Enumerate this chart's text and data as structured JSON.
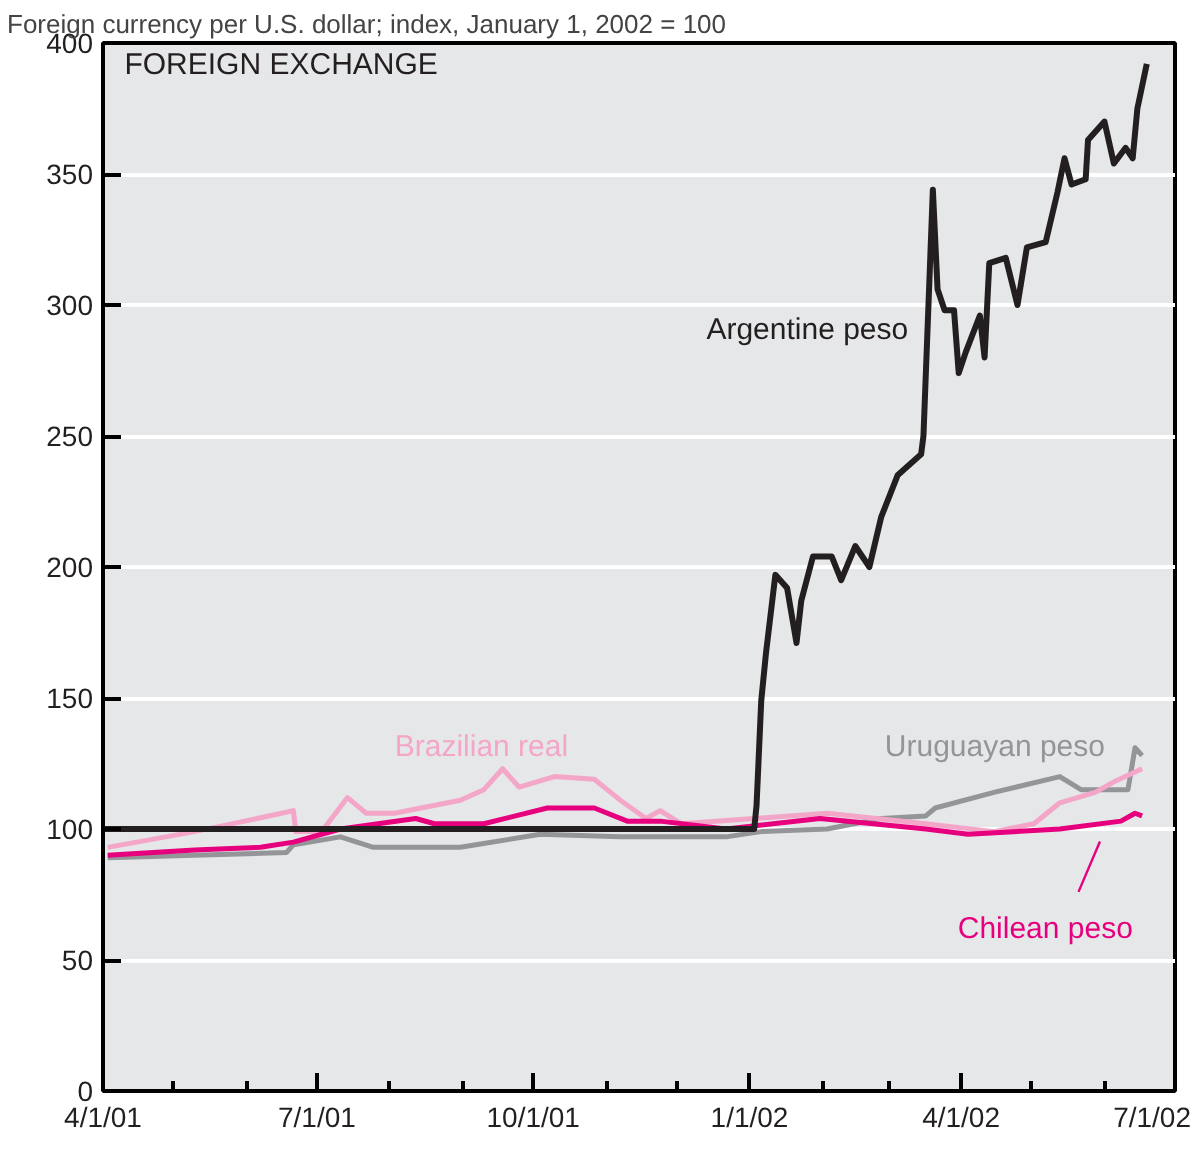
{
  "chart_data": {
    "type": "line",
    "title": "FOREIGN EXCHANGE",
    "ylabel": "Foreign currency per U.S. dollar; index, January 1, 2002 = 100",
    "xlim": [
      "2001-04-01",
      "2002-07-01"
    ],
    "ylim": [
      0,
      400
    ],
    "xticks": [
      {
        "value": "2001-04-01",
        "label": "4/1/01"
      },
      {
        "value": "2001-05-01",
        "label": null
      },
      {
        "value": "2001-06-01",
        "label": null
      },
      {
        "value": "2001-07-01",
        "label": "7/1/01"
      },
      {
        "value": "2001-08-01",
        "label": null
      },
      {
        "value": "2001-09-01",
        "label": null
      },
      {
        "value": "2001-10-01",
        "label": "10/1/01"
      },
      {
        "value": "2001-11-01",
        "label": null
      },
      {
        "value": "2001-12-01",
        "label": null
      },
      {
        "value": "2002-01-01",
        "label": "1/1/02"
      },
      {
        "value": "2002-02-01",
        "label": null
      },
      {
        "value": "2002-03-01",
        "label": null
      },
      {
        "value": "2002-04-01",
        "label": "4/1/02"
      },
      {
        "value": "2002-05-01",
        "label": null
      },
      {
        "value": "2002-06-01",
        "label": null
      },
      {
        "value": "2002-07-01",
        "label": "7/1/02"
      }
    ],
    "yticks": [
      0,
      50,
      100,
      150,
      200,
      250,
      300,
      350,
      400
    ],
    "grid": "y",
    "line_style": "solid",
    "series": [
      {
        "name": "Uruguayan peso",
        "color": "#939598",
        "x": [
          "2001-04-03",
          "2001-06-18",
          "2001-06-21",
          "2001-07-11",
          "2001-07-25",
          "2001-08-31",
          "2001-10-04",
          "2001-11-07",
          "2001-11-18",
          "2001-11-24",
          "2001-12-22",
          "2002-01-06",
          "2002-02-03",
          "2002-02-26",
          "2002-03-17",
          "2002-03-21",
          "2002-04-15",
          "2002-05-13",
          "2002-05-22",
          "2002-06-11",
          "2002-06-14",
          "2002-06-17"
        ],
        "values": [
          89,
          91,
          94,
          97,
          93,
          93,
          98,
          97,
          97,
          97,
          97,
          99,
          100,
          104,
          105,
          108,
          114,
          120,
          115,
          115,
          131,
          128
        ]
      },
      {
        "name": "Brazilian real",
        "color": "#f4a6c8",
        "x": [
          "2001-04-03",
          "2001-05-10",
          "2001-06-16",
          "2001-06-21",
          "2001-06-22",
          "2001-07-03",
          "2001-07-14",
          "2001-07-22",
          "2001-08-03",
          "2001-08-31",
          "2001-09-10",
          "2001-09-18",
          "2001-09-25",
          "2001-10-10",
          "2001-10-27",
          "2001-11-07",
          "2001-11-18",
          "2001-11-24",
          "2001-12-03",
          "2002-02-03",
          "2002-03-17",
          "2002-04-15",
          "2002-05-02",
          "2002-05-13",
          "2002-05-28",
          "2002-06-05",
          "2002-06-17"
        ],
        "values": [
          93,
          99,
          106,
          107,
          99,
          99,
          112,
          106,
          106,
          111,
          115,
          123,
          116,
          120,
          119,
          111,
          104,
          107,
          102,
          106,
          102,
          99,
          102,
          110,
          114,
          118,
          123
        ]
      },
      {
        "name": "Chilean peso",
        "color": "#e6007e",
        "x": [
          "2001-04-03",
          "2001-05-10",
          "2001-06-07",
          "2001-06-21",
          "2001-07-11",
          "2001-08-12",
          "2001-08-20",
          "2001-09-10",
          "2001-10-07",
          "2001-10-27",
          "2001-11-10",
          "2001-11-24",
          "2001-12-22",
          "2002-01-31",
          "2002-03-17",
          "2002-04-04",
          "2002-05-13",
          "2002-06-08",
          "2002-06-14",
          "2002-06-17"
        ],
        "values": [
          90,
          92,
          93,
          95,
          100,
          104,
          102,
          102,
          108,
          108,
          103,
          103,
          100,
          104,
          100,
          98,
          100,
          103,
          106,
          105
        ]
      },
      {
        "name": "Argentine peso",
        "color": "#231f20",
        "x": [
          "2001-04-01",
          "2002-01-03",
          "2002-01-04",
          "2002-01-06",
          "2002-01-08",
          "2002-01-12",
          "2002-01-17",
          "2002-01-21",
          "2002-01-23",
          "2002-01-28",
          "2002-02-05",
          "2002-02-09",
          "2002-02-15",
          "2002-02-21",
          "2002-02-26",
          "2002-03-05",
          "2002-03-15",
          "2002-03-16",
          "2002-03-20",
          "2002-03-22",
          "2002-03-25",
          "2002-03-29",
          "2002-03-31",
          "2002-04-03",
          "2002-04-09",
          "2002-04-11",
          "2002-04-13",
          "2002-04-20",
          "2002-04-25",
          "2002-04-29",
          "2002-05-07",
          "2002-05-12",
          "2002-05-15",
          "2002-05-18",
          "2002-05-24",
          "2002-05-25",
          "2002-06-01",
          "2002-06-05",
          "2002-06-10",
          "2002-06-13",
          "2002-06-15",
          "2002-06-19"
        ],
        "values": [
          100,
          100,
          109,
          149,
          167,
          197,
          192,
          171,
          187,
          204,
          204,
          195,
          208,
          200,
          219,
          235,
          243,
          250,
          344,
          306,
          298,
          298,
          274,
          282,
          296,
          280,
          316,
          318,
          300,
          322,
          324,
          343,
          356,
          346,
          348,
          363,
          370,
          354,
          360,
          356,
          375,
          392
        ]
      }
    ]
  }
}
